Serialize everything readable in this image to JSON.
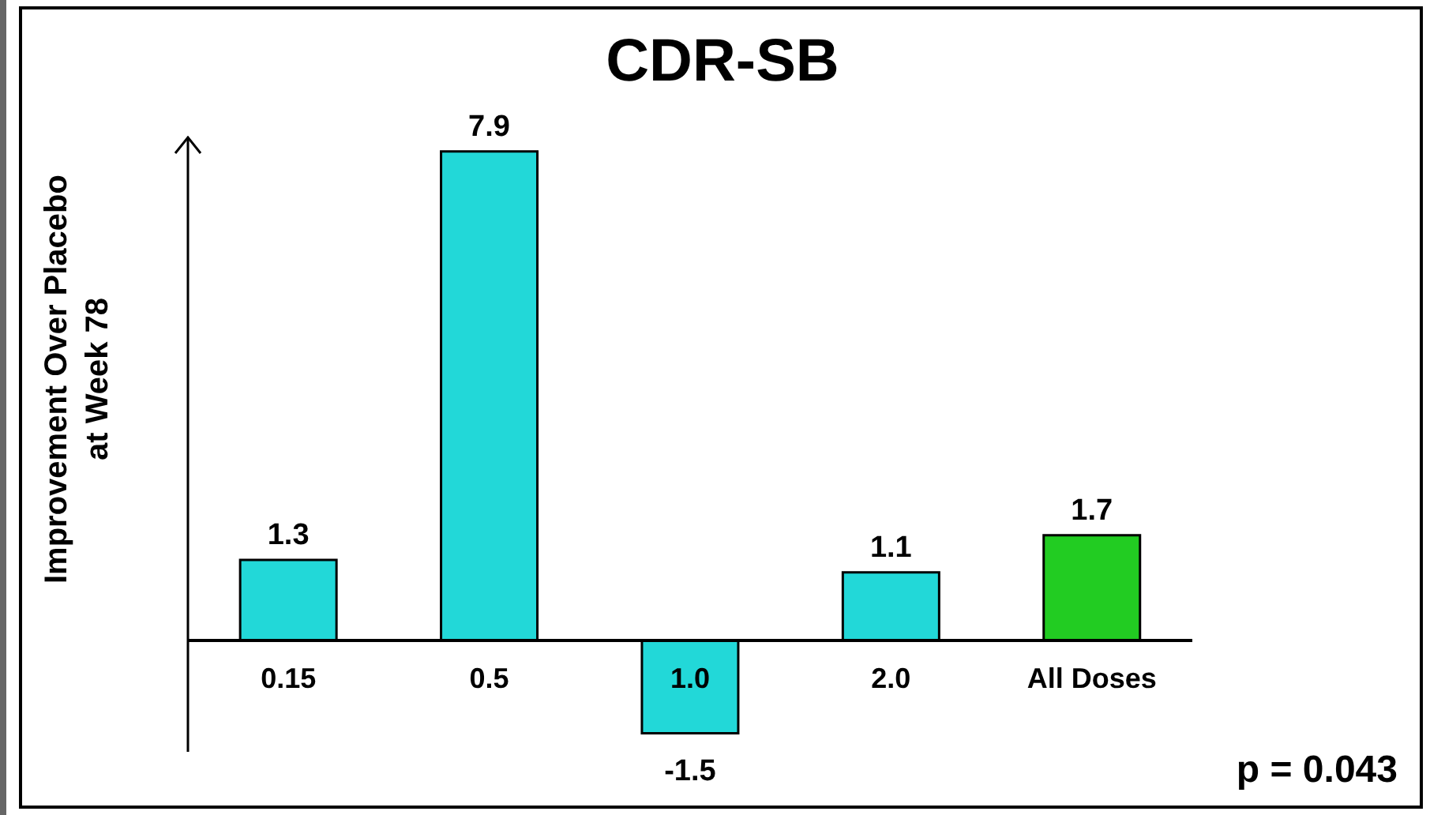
{
  "chart_data": {
    "type": "bar",
    "title": "CDR-SB",
    "ylabel": "Improvement Over Placebo\nat Week 78",
    "categories": [
      "0.15",
      "0.5",
      "1.0",
      "2.0",
      "All Doses"
    ],
    "values": [
      1.3,
      7.9,
      -1.5,
      1.1,
      1.7
    ],
    "colors": [
      "#22d8d8",
      "#22d8d8",
      "#22d8d8",
      "#22d8d8",
      "#22cc22"
    ],
    "ylim": [
      -1.8,
      8.1
    ],
    "tick_labels": "x",
    "data_labels": true,
    "annotations": [
      "p = 0.043"
    ]
  }
}
